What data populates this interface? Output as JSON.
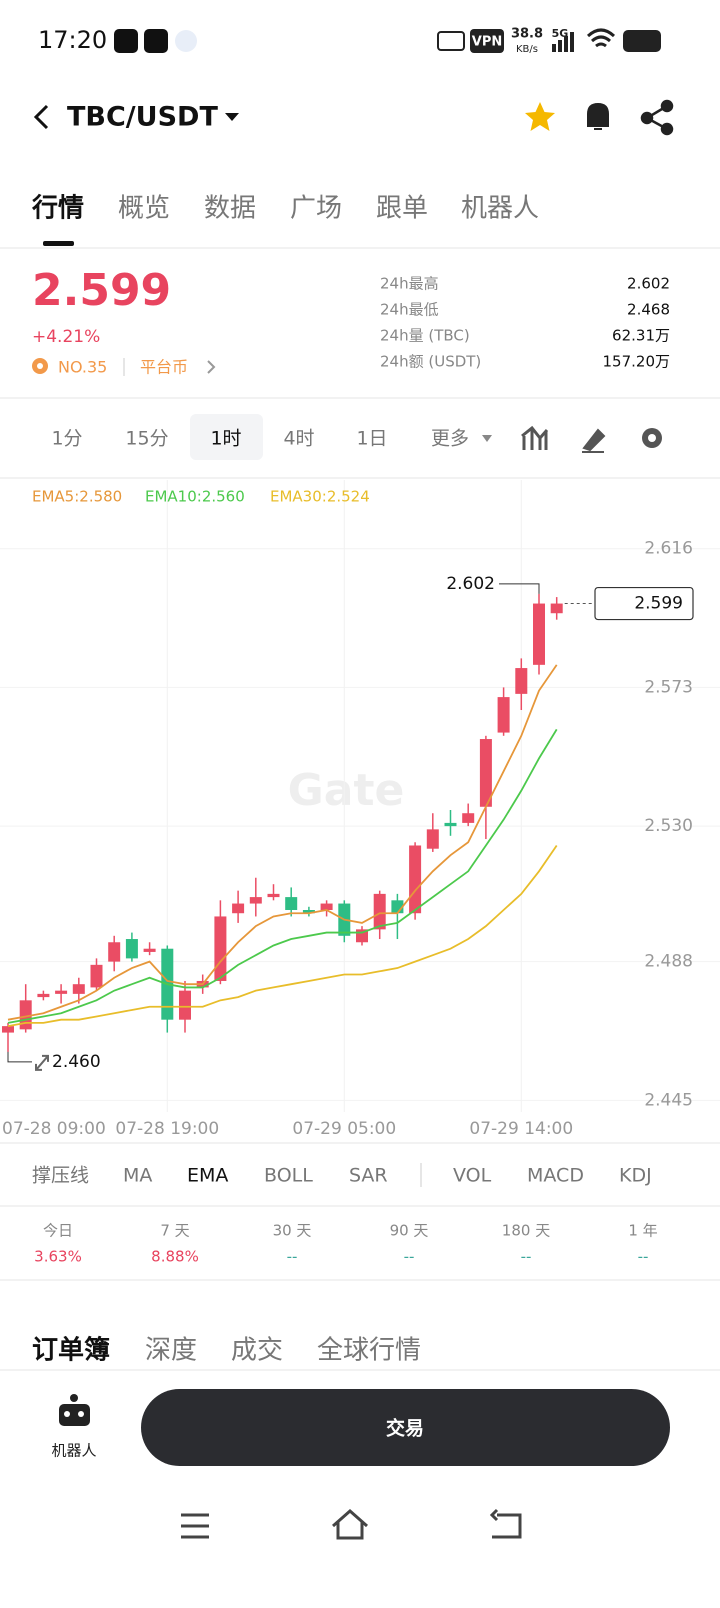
{
  "status_bar": {
    "time": "17:20",
    "vpn": "VPN",
    "speed": "38.8",
    "speed_unit": "KB/s",
    "network": "5G"
  },
  "header": {
    "pair": "TBC/USDT"
  },
  "tabs": [
    "行情",
    "概览",
    "数据",
    "广场",
    "跟单",
    "机器人"
  ],
  "price": {
    "last": "2.599",
    "change": "+4.21%",
    "rank": "NO.35",
    "tag": "平台币"
  },
  "stats": [
    {
      "label": "24h最高",
      "value": "2.602"
    },
    {
      "label": "24h最低",
      "value": "2.468"
    },
    {
      "label": "24h量 (TBC)",
      "value": "62.31万"
    },
    {
      "label": "24h额 (USDT)",
      "value": "157.20万"
    }
  ],
  "intervals": [
    "1分",
    "15分",
    "1时",
    "4时",
    "1日",
    "更多"
  ],
  "chart_data": {
    "type": "candlestick",
    "watermark": "Gate",
    "categories": [
      "07-28 09:00",
      null,
      null,
      null,
      null,
      null,
      null,
      null,
      null,
      "07-28 19:00",
      null,
      null,
      null,
      null,
      null,
      null,
      null,
      null,
      null,
      "07-29 05:00",
      null,
      null,
      null,
      null,
      null,
      null,
      null,
      null,
      null,
      "07-29 14:00",
      null,
      null
    ],
    "open": [
      2.466,
      2.467,
      2.477,
      2.478,
      2.478,
      2.48,
      2.488,
      2.495,
      2.491,
      2.492,
      2.47,
      2.48,
      2.482,
      2.503,
      2.506,
      2.508,
      2.508,
      2.504,
      2.504,
      2.506,
      2.494,
      2.498,
      2.507,
      2.503,
      2.523,
      2.531,
      2.531,
      2.536,
      2.559,
      2.571,
      2.58,
      2.596
    ],
    "high": [
      2.469,
      2.481,
      2.479,
      2.481,
      2.483,
      2.489,
      2.496,
      2.497,
      2.494,
      2.493,
      2.482,
      2.484,
      2.507,
      2.51,
      2.514,
      2.512,
      2.511,
      2.505,
      2.507,
      2.507,
      2.499,
      2.51,
      2.509,
      2.525,
      2.534,
      2.535,
      2.537,
      2.558,
      2.573,
      2.582,
      2.602,
      2.601
    ],
    "low": [
      2.46,
      2.466,
      2.476,
      2.475,
      2.475,
      2.479,
      2.485,
      2.488,
      2.49,
      2.466,
      2.466,
      2.478,
      2.481,
      2.5,
      2.502,
      2.507,
      2.502,
      2.502,
      2.502,
      2.494,
      2.493,
      2.495,
      2.495,
      2.501,
      2.522,
      2.527,
      2.53,
      2.526,
      2.558,
      2.566,
      2.577,
      2.594
    ],
    "close": [
      2.468,
      2.476,
      2.478,
      2.479,
      2.481,
      2.487,
      2.494,
      2.489,
      2.492,
      2.47,
      2.479,
      2.482,
      2.502,
      2.506,
      2.508,
      2.509,
      2.504,
      2.503,
      2.506,
      2.496,
      2.498,
      2.509,
      2.503,
      2.524,
      2.529,
      2.53,
      2.534,
      2.557,
      2.57,
      2.579,
      2.599,
      2.599
    ],
    "up_color": "#ea4d64",
    "down_color": "#2ebd85",
    "series": [
      {
        "name": "EMA5:2.580",
        "color": "#e6973a",
        "values": [
          2.47,
          2.471,
          2.472,
          2.474,
          2.476,
          2.479,
          2.483,
          2.486,
          2.488,
          2.482,
          2.481,
          2.481,
          2.488,
          2.494,
          2.499,
          2.502,
          2.503,
          2.503,
          2.504,
          2.501,
          2.5,
          2.503,
          2.503,
          2.51,
          2.516,
          2.521,
          2.525,
          2.536,
          2.547,
          2.558,
          2.572,
          2.58
        ]
      },
      {
        "name": "EMA10:2.560",
        "color": "#4cc94c",
        "values": [
          2.469,
          2.47,
          2.471,
          2.472,
          2.474,
          2.476,
          2.479,
          2.481,
          2.483,
          2.481,
          2.48,
          2.48,
          2.483,
          2.487,
          2.49,
          2.493,
          2.495,
          2.496,
          2.497,
          2.497,
          2.497,
          2.499,
          2.5,
          2.504,
          2.508,
          2.512,
          2.516,
          2.524,
          2.532,
          2.541,
          2.551,
          2.56
        ]
      },
      {
        "name": "EMA30:2.524",
        "color": "#e8bd2a",
        "values": [
          2.468,
          2.469,
          2.469,
          2.47,
          2.47,
          2.471,
          2.472,
          2.473,
          2.474,
          2.474,
          2.474,
          2.474,
          2.476,
          2.477,
          2.479,
          2.48,
          2.481,
          2.482,
          2.483,
          2.484,
          2.484,
          2.485,
          2.486,
          2.488,
          2.49,
          2.492,
          2.495,
          2.499,
          2.504,
          2.509,
          2.516,
          2.524
        ]
      }
    ],
    "ylim": [
      2.442,
      2.628
    ],
    "yticks": [
      {
        "value": 2.445,
        "label": "2.445"
      },
      {
        "value": 2.488,
        "label": "2.488"
      },
      {
        "value": 2.53,
        "label": "2.530"
      },
      {
        "value": 2.573,
        "label": "2.573"
      },
      {
        "value": 2.616,
        "label": "2.616"
      }
    ],
    "grid": true,
    "high_marker": {
      "value": 2.602,
      "label": "2.602"
    },
    "low_marker": {
      "value": 2.46,
      "label": "2.460"
    },
    "last_price": {
      "value": 2.599,
      "label": "2.599"
    }
  },
  "indicators": [
    "撑压线",
    "MA",
    "EMA",
    "BOLL",
    "SAR",
    "VOL",
    "MACD",
    "KDJ"
  ],
  "performance": [
    {
      "period": "今日",
      "change": "3.63%"
    },
    {
      "period": "7 天",
      "change": "8.88%"
    },
    {
      "period": "30 天",
      "change": "--"
    },
    {
      "period": "90 天",
      "change": "--"
    },
    {
      "period": "180 天",
      "change": "--"
    },
    {
      "period": "1 年",
      "change": "--"
    }
  ],
  "book_tabs": [
    "订单簿",
    "深度",
    "成交",
    "全球行情"
  ],
  "bottom_bar": {
    "robot": "机器人",
    "trade": "交易"
  }
}
